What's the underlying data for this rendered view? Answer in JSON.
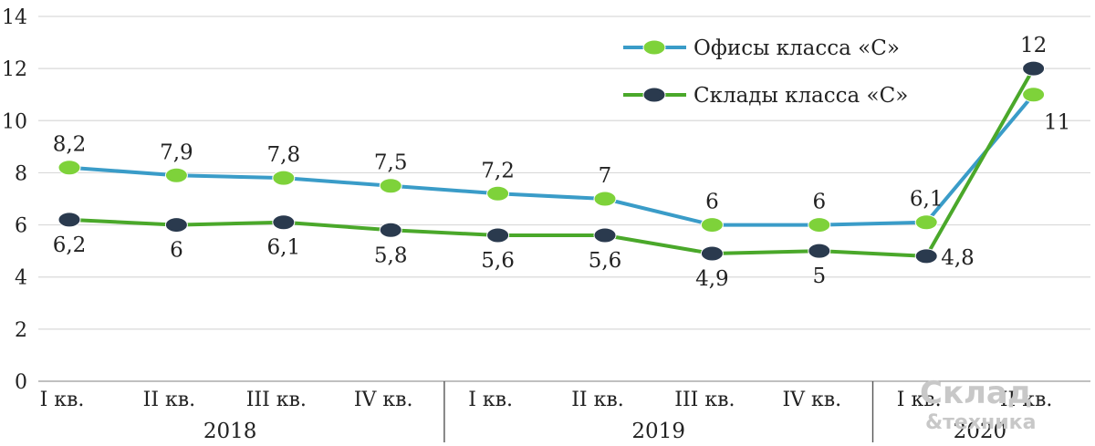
{
  "chart_data": {
    "type": "line",
    "categories": [
      "I кв.",
      "II кв.",
      "III кв.",
      "IV кв.",
      "I кв.",
      "II кв.",
      "III кв.",
      "IV кв.",
      "I кв.",
      "II кв."
    ],
    "groups": [
      {
        "label": "2018",
        "span": 4
      },
      {
        "label": "2019",
        "span": 4
      },
      {
        "label": "2020",
        "span": 2
      }
    ],
    "ylim": [
      0,
      14
    ],
    "yticks": [
      0,
      2,
      4,
      6,
      8,
      10,
      12,
      14
    ],
    "grid": true,
    "legend_position": "top-right",
    "series": [
      {
        "name": "Офисы класса «С»",
        "line_color": "#3a9cc8",
        "marker_color": "#7ed23a",
        "values": [
          8.2,
          7.9,
          7.8,
          7.5,
          7.2,
          7,
          6,
          6,
          6.1,
          11
        ],
        "labels": [
          "8,2",
          "7,9",
          "7,8",
          "7,5",
          "7,2",
          "7",
          "6",
          "6",
          "6,1",
          "11"
        ],
        "label_pos": [
          "above",
          "above",
          "above",
          "above",
          "above",
          "above",
          "above",
          "above",
          "above",
          "below-right"
        ]
      },
      {
        "name": "Склады класса «С»",
        "line_color": "#4aa82a",
        "marker_color": "#2a3a4e",
        "values": [
          6.2,
          6,
          6.1,
          5.8,
          5.6,
          5.6,
          4.9,
          5,
          4.8,
          12
        ],
        "labels": [
          "6,2",
          "6",
          "6,1",
          "5,8",
          "5,6",
          "5,6",
          "4,9",
          "5",
          "4,8",
          "12"
        ],
        "label_pos": [
          "below",
          "below",
          "below",
          "below",
          "below",
          "below",
          "below",
          "below",
          "right",
          "above"
        ]
      }
    ]
  },
  "watermark": {
    "line1": "Склад",
    "line2": "&техника"
  }
}
